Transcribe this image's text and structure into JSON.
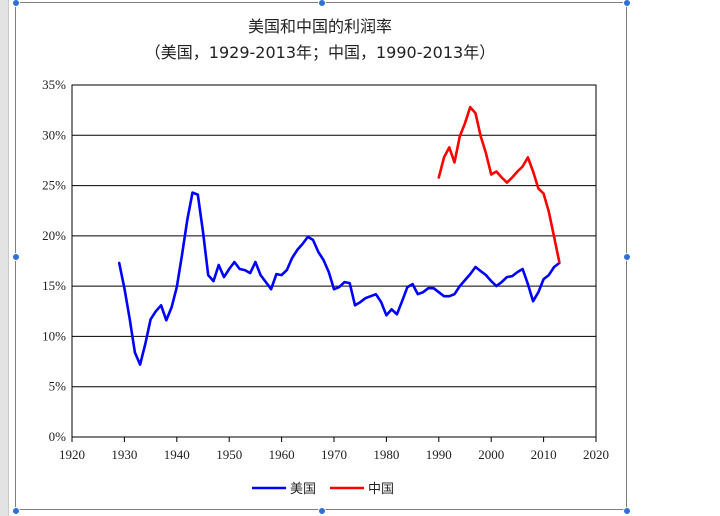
{
  "chart_data": {
    "type": "line",
    "title": "美国和中国的利润率",
    "subtitle": "（美国，1929-2013年；中国，1990-2013年）",
    "xlim": [
      1920,
      2020
    ],
    "ylim": [
      0,
      35
    ],
    "xticks": [
      1920,
      1930,
      1940,
      1950,
      1960,
      1970,
      1980,
      1990,
      2000,
      2010,
      2020
    ],
    "yticks": [
      {
        "value": 0,
        "label": "0%"
      },
      {
        "value": 5,
        "label": "5%"
      },
      {
        "value": 10,
        "label": "10%"
      },
      {
        "value": 15,
        "label": "15%"
      },
      {
        "value": 20,
        "label": "20%"
      },
      {
        "value": 25,
        "label": "25%"
      },
      {
        "value": 30,
        "label": "30%"
      },
      {
        "value": 35,
        "label": "35%"
      }
    ],
    "grid": "horizontal",
    "legend_position": "bottom",
    "series": [
      {
        "name": "美国",
        "color": "#0000ff",
        "x": [
          1929,
          1930,
          1931,
          1932,
          1933,
          1934,
          1935,
          1936,
          1937,
          1938,
          1939,
          1940,
          1941,
          1942,
          1943,
          1944,
          1945,
          1946,
          1947,
          1948,
          1949,
          1950,
          1951,
          1952,
          1953,
          1954,
          1955,
          1956,
          1957,
          1958,
          1959,
          1960,
          1961,
          1962,
          1963,
          1964,
          1965,
          1966,
          1967,
          1968,
          1969,
          1970,
          1971,
          1972,
          1973,
          1974,
          1975,
          1976,
          1977,
          1978,
          1979,
          1980,
          1981,
          1982,
          1983,
          1984,
          1985,
          1986,
          1987,
          1988,
          1989,
          1990,
          1991,
          1992,
          1993,
          1994,
          1995,
          1996,
          1997,
          1998,
          1999,
          2000,
          2001,
          2002,
          2003,
          2004,
          2005,
          2006,
          2007,
          2008,
          2009,
          2010,
          2011,
          2012,
          2013
        ],
        "values": [
          17.3,
          14.8,
          11.8,
          8.4,
          7.2,
          9.3,
          11.7,
          12.5,
          13.1,
          11.6,
          12.9,
          14.9,
          18.1,
          21.6,
          24.3,
          24.1,
          20.4,
          16.1,
          15.5,
          17.1,
          15.9,
          16.7,
          17.4,
          16.7,
          16.6,
          16.3,
          17.4,
          16.1,
          15.4,
          14.7,
          16.2,
          16.1,
          16.6,
          17.8,
          18.6,
          19.2,
          19.9,
          19.6,
          18.4,
          17.6,
          16.4,
          14.7,
          14.9,
          15.4,
          15.3,
          13.1,
          13.4,
          13.8,
          14.0,
          14.2,
          13.4,
          12.1,
          12.7,
          12.2,
          13.5,
          14.9,
          15.2,
          14.2,
          14.4,
          14.8,
          14.8,
          14.4,
          14.0,
          14.0,
          14.2,
          15.0,
          15.6,
          16.2,
          16.9,
          16.5,
          16.1,
          15.5,
          15.0,
          15.4,
          15.9,
          16.0,
          16.4,
          16.7,
          15.2,
          13.5,
          14.4,
          15.7,
          16.1,
          16.9,
          17.3
        ]
      },
      {
        "name": "中国",
        "color": "#ff0000",
        "x": [
          1990,
          1991,
          1992,
          1993,
          1994,
          1995,
          1996,
          1997,
          1998,
          1999,
          2000,
          2001,
          2002,
          2003,
          2004,
          2005,
          2006,
          2007,
          2008,
          2009,
          2010,
          2011,
          2012,
          2013
        ],
        "values": [
          25.8,
          27.8,
          28.8,
          27.3,
          29.9,
          31.2,
          32.8,
          32.2,
          29.9,
          28.2,
          26.1,
          26.4,
          25.8,
          25.3,
          25.8,
          26.4,
          26.9,
          27.8,
          26.4,
          24.7,
          24.2,
          22.4,
          19.9,
          17.4
        ]
      }
    ]
  }
}
